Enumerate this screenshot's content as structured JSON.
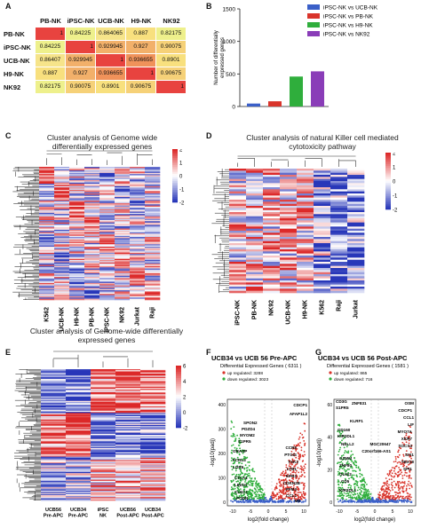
{
  "panels": {
    "A": "A",
    "B": "B",
    "C": "C",
    "D": "D",
    "E": "E",
    "F": "F",
    "G": "G"
  },
  "corr_table": {
    "headers": [
      "PB-NK",
      "iPSC-NK",
      "UCB-NK",
      "H9-NK",
      "NK92"
    ],
    "rows": [
      {
        "label": "PB-NK",
        "values": [
          "1",
          "0.84225",
          "0.864065",
          "0.887",
          "0.82175"
        ]
      },
      {
        "label": "iPSC-NK",
        "values": [
          "0.84225",
          "1",
          "0.929945",
          "0.927",
          "0.90075"
        ]
      },
      {
        "label": "UCB-NK",
        "values": [
          "0.86407",
          "0.929945",
          "1",
          "0.936655",
          "0.8901"
        ]
      },
      {
        "label": "H9-NK",
        "values": [
          "0.887",
          "0.927",
          "0.936655",
          "1",
          "0.90675"
        ]
      },
      {
        "label": "NK92",
        "values": [
          "0.82175",
          "0.90075",
          "0.8901",
          "0.90675",
          "1"
        ]
      }
    ]
  },
  "chart_data": [
    {
      "type": "bar",
      "categories": [
        "iPSC-NK vs UCB-NK",
        "iPSC-NK vs PB-NK",
        "iPSC-NK vs H9-NK",
        "iPSC-NK vs NK92"
      ],
      "values": [
        45,
        80,
        460,
        540
      ],
      "colors": [
        "#3a5fc8",
        "#d9342b",
        "#2fae3c",
        "#8a3db8"
      ],
      "ylabel": "Number of differentially expressed genes",
      "ylim": [
        0,
        1500
      ],
      "yticks": [
        "0",
        "500",
        "1000",
        "1500"
      ],
      "legend": [
        "iPSC-NK vs UCB-NK",
        "iPSC-NK vs PB-NK",
        "iPSC-NK vs H9-NK",
        "iPSC-NK vs NK92"
      ]
    },
    {
      "type": "scatter",
      "title": "UCB34 vs UCB 56 Pre-APC",
      "subtitle": "Differential Expressed Genes ( 6311 )",
      "legend": [
        "up regulated: 3288",
        "down regulated: 3023"
      ],
      "xlabel": "log2(fold change)",
      "ylabel": "-log10(padj)",
      "xticks": [
        "-10",
        "-5",
        "0",
        "5",
        "10"
      ],
      "yticks": [
        "0",
        "100",
        "200",
        "300",
        "400"
      ],
      "labels": [
        "CDCP1",
        "AFAP1L2",
        "SPON2",
        "PDZD4",
        "MYOM2",
        "S1PR5",
        "GRASP",
        "CCR5",
        "PTGIS",
        "TXK2",
        "LTB1",
        "EPB3",
        "CDKN2B",
        "PPM3",
        "FCRL3",
        "LGR6",
        "CCL1",
        "M8",
        "CTLA1",
        "LINGO",
        "CLEC1",
        "PODN"
      ]
    },
    {
      "type": "scatter",
      "title": "UCB34 vs UCB 56 Post-APC",
      "subtitle": "Differential Expressed Genes ( 1581 )",
      "legend": [
        "up regulated: 865",
        "down regulated: 716"
      ],
      "xlabel": "log2(fold change)",
      "ylabel": "-log10(padj)",
      "xticks": [
        "-10",
        "-5",
        "0",
        "5",
        "10"
      ],
      "yticks": [
        "0",
        "20",
        "40",
        "60"
      ],
      "labels": [
        "CD3G",
        "S1PR5",
        "ZNF831",
        "KLRF1",
        "CD160",
        "KIR3DL1",
        "NELL2",
        "GZMM",
        "ZNF80",
        "OLIG2",
        "CD5",
        "KIR2DL1",
        "OSM",
        "CDCP1",
        "CCL1",
        "LIF",
        "MYO7A",
        "XKR7",
        "SOCS3",
        "MGC20647",
        "C20orf166-AS1",
        "SIX1",
        "TBX18",
        "SPI1"
      ]
    }
  ],
  "heatmap_c": {
    "title": "Cluster analysis of Genome wide differentially expressed genes",
    "columns": [
      "K562",
      "UCB-NK",
      "H9-NK",
      "PB-NK",
      "iPSC-NK",
      "NK92",
      "Jurkat",
      "Raji"
    ],
    "scale": [
      "2",
      "1",
      "0",
      "-1",
      "-2"
    ]
  },
  "heatmap_d": {
    "title": "Cluster analysis of natural Killer cell mediated cytotoxicity pathway",
    "columns": [
      "iPSC-NK",
      "PB-NK",
      "NK92",
      "UCB-NK",
      "H9-NK",
      "K562",
      "Raji",
      "Jurkat"
    ],
    "scale": [
      "2",
      "1",
      "0",
      "-1",
      "-2"
    ]
  },
  "heatmap_e": {
    "title": "Cluster analysis of Genome-wide differentially expressed genes",
    "columns": [
      "UCB56 Pre-APC",
      "UCB34 Pre-APC",
      "iPSC NK",
      "UCB56 Post-APC",
      "UCB34 Post-APC"
    ],
    "scale": [
      "6",
      "4",
      "2",
      "0",
      "-2"
    ]
  }
}
